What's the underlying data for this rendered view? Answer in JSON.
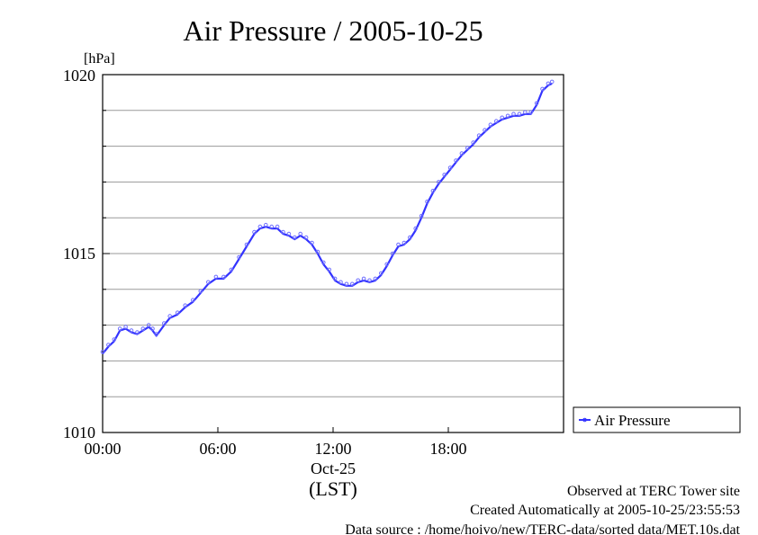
{
  "chart_data": {
    "type": "line",
    "title": "Air Pressure / 2005-10-25",
    "y_unit_label": "[hPa]",
    "ylim": [
      1010,
      1020
    ],
    "y_ticks": [
      "1010",
      "1015",
      "1020"
    ],
    "x_ticks": [
      "00:00",
      "06:00",
      "12:00",
      "18:00"
    ],
    "x_date_label": "Oct-25",
    "x_timezone_label": "(LST)",
    "xlim_hours": [
      0,
      24
    ],
    "grid": "horizontal",
    "legend_position": "right",
    "series": [
      {
        "name": "Air Pressure",
        "color": "#3333ff",
        "x_hours": [
          0.0,
          0.3,
          0.6,
          0.9,
          1.2,
          1.5,
          1.8,
          2.1,
          2.4,
          2.6,
          2.8,
          3.2,
          3.5,
          3.9,
          4.3,
          4.7,
          5.1,
          5.5,
          5.9,
          6.3,
          6.7,
          7.1,
          7.5,
          7.9,
          8.2,
          8.5,
          8.8,
          9.1,
          9.4,
          9.7,
          10.0,
          10.3,
          10.6,
          10.9,
          11.2,
          11.5,
          11.8,
          12.1,
          12.4,
          12.7,
          13.0,
          13.3,
          13.6,
          13.9,
          14.2,
          14.5,
          14.8,
          15.1,
          15.4,
          15.7,
          16.0,
          16.3,
          16.6,
          16.9,
          17.2,
          17.5,
          17.8,
          18.1,
          18.4,
          18.7,
          19.0,
          19.3,
          19.6,
          19.9,
          20.2,
          20.5,
          20.8,
          21.1,
          21.4,
          21.7,
          22.0,
          22.3,
          22.6,
          22.9,
          23.2,
          23.4
        ],
        "values": [
          1012.2,
          1012.4,
          1012.55,
          1012.85,
          1012.9,
          1012.8,
          1012.75,
          1012.85,
          1012.95,
          1012.85,
          1012.7,
          1013.0,
          1013.2,
          1013.3,
          1013.5,
          1013.65,
          1013.9,
          1014.15,
          1014.3,
          1014.3,
          1014.5,
          1014.85,
          1015.2,
          1015.55,
          1015.7,
          1015.75,
          1015.7,
          1015.7,
          1015.55,
          1015.5,
          1015.4,
          1015.5,
          1015.4,
          1015.25,
          1015.0,
          1014.7,
          1014.5,
          1014.25,
          1014.15,
          1014.1,
          1014.1,
          1014.2,
          1014.25,
          1014.2,
          1014.25,
          1014.4,
          1014.65,
          1014.95,
          1015.2,
          1015.25,
          1015.4,
          1015.65,
          1016.0,
          1016.4,
          1016.7,
          1016.95,
          1017.15,
          1017.35,
          1017.55,
          1017.75,
          1017.9,
          1018.05,
          1018.25,
          1018.4,
          1018.55,
          1018.65,
          1018.75,
          1018.8,
          1018.85,
          1018.85,
          1018.9,
          1018.9,
          1019.15,
          1019.55,
          1019.7,
          1019.75
        ]
      }
    ]
  },
  "notes": {
    "line1": "Observed at TERC Tower site",
    "line2": "Created Automatically at 2005-10-25/23:55:53",
    "line3": "Data source : /home/hoivo/new/TERC-data/sorted  data/MET.10s.dat"
  }
}
